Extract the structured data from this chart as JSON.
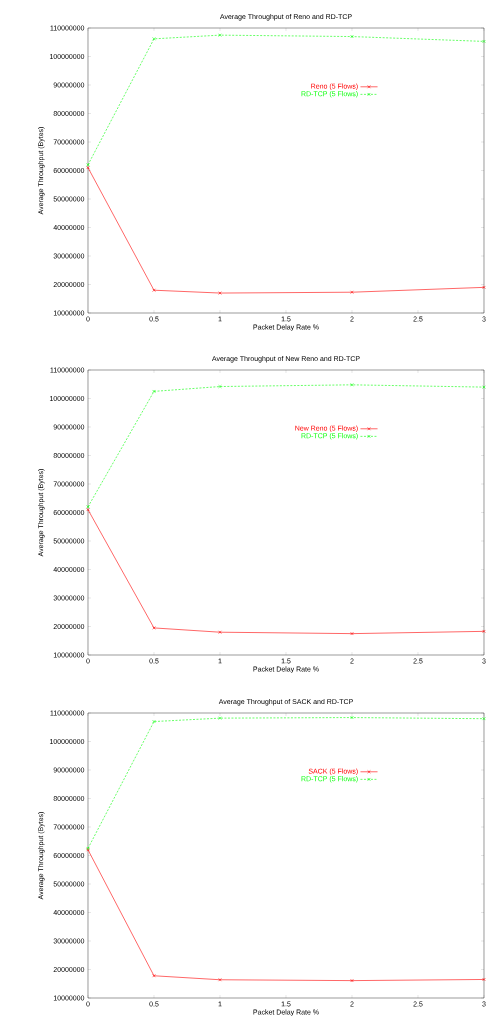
{
  "chart_data": [
    {
      "type": "line",
      "title": "Average Throughput of Reno and RD-TCP",
      "xlabel": "Packet Delay Rate %",
      "ylabel": "Average Throughput (Bytes)",
      "x": [
        0,
        0.5,
        1,
        2,
        3
      ],
      "xlim": [
        0,
        3
      ],
      "ylim": [
        10000000,
        110000000
      ],
      "xticks": [
        0,
        0.5,
        1,
        1.5,
        2,
        2.5,
        3
      ],
      "yticks": [
        10000000,
        20000000,
        30000000,
        40000000,
        50000000,
        60000000,
        70000000,
        80000000,
        90000000,
        100000000,
        110000000
      ],
      "legend": "top right",
      "series": [
        {
          "name": "Reno (5 Flows)",
          "color": "#ff0000",
          "marker": "cross",
          "line_style": "solid",
          "values": [
            61000000,
            18000000,
            17000000,
            17300000,
            19000000
          ]
        },
        {
          "name": "RD-TCP (5 Flows)",
          "color": "#00ff00",
          "marker": "cross",
          "line_style": "dashed",
          "values": [
            62000000,
            106200000,
            107500000,
            107000000,
            105300000
          ]
        }
      ]
    },
    {
      "type": "line",
      "title": "Average Throughput of New Reno and RD-TCP",
      "xlabel": "Packet Delay Rate %",
      "ylabel": "Average Throughput (Bytes)",
      "x": [
        0,
        0.5,
        1,
        2,
        3
      ],
      "xlim": [
        0,
        3
      ],
      "ylim": [
        10000000,
        110000000
      ],
      "xticks": [
        0,
        0.5,
        1,
        1.5,
        2,
        2.5,
        3
      ],
      "yticks": [
        10000000,
        20000000,
        30000000,
        40000000,
        50000000,
        60000000,
        70000000,
        80000000,
        90000000,
        100000000,
        110000000
      ],
      "legend": "top right",
      "series": [
        {
          "name": "New Reno (5 Flows)",
          "color": "#ff0000",
          "marker": "cross",
          "line_style": "solid",
          "values": [
            61000000,
            19500000,
            18000000,
            17500000,
            18300000
          ]
        },
        {
          "name": "RD-TCP (5 Flows)",
          "color": "#00ff00",
          "marker": "cross",
          "line_style": "dashed",
          "values": [
            62000000,
            102500000,
            104200000,
            104800000,
            104000000
          ]
        }
      ]
    },
    {
      "type": "line",
      "title": "Average Throughput of SACK and RD-TCP",
      "xlabel": "Packet Delay Rate %",
      "ylabel": "Average Throughput (Bytes)",
      "x": [
        0,
        0.5,
        1,
        2,
        3
      ],
      "xlim": [
        0,
        3
      ],
      "ylim": [
        10000000,
        110000000
      ],
      "xticks": [
        0,
        0.5,
        1,
        1.5,
        2,
        2.5,
        3
      ],
      "yticks": [
        10000000,
        20000000,
        30000000,
        40000000,
        50000000,
        60000000,
        70000000,
        80000000,
        90000000,
        100000000,
        110000000
      ],
      "legend": "top right",
      "series": [
        {
          "name": "SACK (5 Flows)",
          "color": "#ff0000",
          "marker": "cross",
          "line_style": "solid",
          "values": [
            62000000,
            17800000,
            16400000,
            16100000,
            16500000
          ]
        },
        {
          "name": "RD-TCP (5 Flows)",
          "color": "#00ff00",
          "marker": "cross",
          "line_style": "dashed",
          "values": [
            62500000,
            107000000,
            108200000,
            108400000,
            108000000
          ]
        }
      ]
    }
  ]
}
